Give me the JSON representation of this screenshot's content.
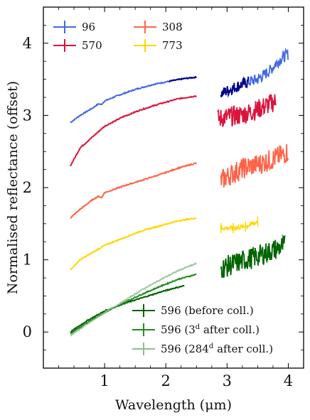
{
  "chart_data": {
    "type": "line",
    "xlabel": "Wavelength (μm)",
    "ylabel": "Normalised reflectance (offset)",
    "xlim": [
      0.0,
      4.25
    ],
    "ylim": [
      -0.5,
      4.5
    ],
    "xticks": [
      1,
      2,
      3,
      4
    ],
    "yticks": [
      0,
      1,
      2,
      3,
      4
    ],
    "grid": false,
    "legend_top": {
      "placement": "top-left",
      "entries": [
        {
          "label": "96",
          "color": "#4169e1"
        },
        {
          "label": "570",
          "color": "#dc143c"
        },
        {
          "label": "308",
          "color": "#ff6347"
        },
        {
          "label": "773",
          "color": "#ffd700"
        }
      ]
    },
    "legend_bottom": {
      "placement": "bottom-right",
      "entries": [
        {
          "label": "596 (before coll.)",
          "color": "#006400"
        },
        {
          "label": "596 (3",
          "sup": "d",
          "suffix": " after coll.)",
          "color": "#228b22"
        },
        {
          "label": "596 (284",
          "sup": "d",
          "suffix": " after coll.)",
          "color": "#8fbc8f"
        }
      ]
    },
    "series": [
      {
        "name": "96",
        "color": "#4169e1",
        "visible": {
          "x": [
            0.44,
            0.6,
            0.8,
            0.9,
            0.95,
            1.0,
            1.2,
            1.5,
            1.8,
            2.1,
            2.3,
            2.5
          ],
          "y": [
            2.9,
            3.0,
            3.1,
            3.16,
            3.15,
            3.2,
            3.27,
            3.36,
            3.43,
            3.48,
            3.51,
            3.53
          ]
        },
        "ir": {
          "x": [
            2.9,
            3.1,
            3.3,
            3.5,
            3.7,
            3.8,
            3.9,
            4.0
          ],
          "y": [
            3.3,
            3.38,
            3.45,
            3.5,
            3.62,
            3.72,
            3.8,
            3.85
          ]
        },
        "ir_noise": 0.08
      },
      {
        "name": "570",
        "color": "#dc143c",
        "visible": {
          "x": [
            0.44,
            0.6,
            0.8,
            1.0,
            1.3,
            1.6,
            1.9,
            2.2,
            2.5
          ],
          "y": [
            2.3,
            2.55,
            2.7,
            2.85,
            2.98,
            3.08,
            3.16,
            3.23,
            3.27
          ]
        },
        "ir": {
          "x": [
            2.85,
            3.0,
            3.2,
            3.4,
            3.6,
            3.8
          ],
          "y": [
            2.95,
            2.98,
            3.0,
            3.05,
            3.12,
            3.2
          ]
        },
        "ir_noise": 0.14
      },
      {
        "name": "308",
        "color": "#ff6347",
        "visible": {
          "x": [
            0.44,
            0.6,
            0.8,
            0.9,
            0.95,
            1.0,
            1.3,
            1.6,
            1.9,
            2.2,
            2.5
          ],
          "y": [
            1.58,
            1.7,
            1.83,
            1.88,
            1.86,
            1.93,
            2.02,
            2.1,
            2.18,
            2.27,
            2.34
          ]
        },
        "ir": {
          "x": [
            2.9,
            3.1,
            3.3,
            3.5,
            3.7,
            3.9,
            4.0
          ],
          "y": [
            2.1,
            2.2,
            2.28,
            2.32,
            2.38,
            2.45,
            2.5
          ]
        },
        "ir_noise": 0.15
      },
      {
        "name": "773",
        "color": "#ffd700",
        "visible": {
          "x": [
            0.44,
            0.6,
            0.8,
            1.0,
            1.3,
            1.6,
            1.9,
            2.2,
            2.5
          ],
          "y": [
            0.86,
            1.0,
            1.1,
            1.2,
            1.3,
            1.4,
            1.47,
            1.54,
            1.58
          ]
        },
        "ir": {
          "x": [
            2.9,
            3.1,
            3.3,
            3.5
          ],
          "y": [
            1.44,
            1.44,
            1.46,
            1.53
          ]
        },
        "ir_noise": 0.03
      },
      {
        "name": "596 (before coll.)",
        "color": "#006400",
        "visible": {
          "x": [
            0.44,
            0.7,
            1.0,
            1.3,
            1.6,
            1.9,
            2.1,
            2.3
          ],
          "y": [
            0.0,
            0.15,
            0.29,
            0.39,
            0.47,
            0.55,
            0.6,
            0.64
          ]
        },
        "ir": {
          "x": [
            2.9,
            3.2,
            3.5,
            3.8,
            3.95
          ],
          "y": [
            0.88,
            0.97,
            1.05,
            1.15,
            1.2
          ]
        },
        "ir_noise": 0.15
      },
      {
        "name": "596 (3d after coll.)",
        "color": "#228b22",
        "visible": {
          "x": [
            0.44,
            0.7,
            1.0,
            1.3,
            1.6,
            1.9,
            2.2,
            2.5
          ],
          "y": [
            -0.02,
            0.12,
            0.27,
            0.4,
            0.52,
            0.63,
            0.73,
            0.8
          ]
        }
      },
      {
        "name": "596 (284d after coll.)",
        "color": "#8fbc8f",
        "visible": {
          "x": [
            0.44,
            0.7,
            1.0,
            1.3,
            1.6,
            1.9,
            2.2,
            2.5
          ],
          "y": [
            -0.05,
            0.1,
            0.27,
            0.42,
            0.58,
            0.72,
            0.85,
            0.95
          ]
        }
      }
    ]
  }
}
